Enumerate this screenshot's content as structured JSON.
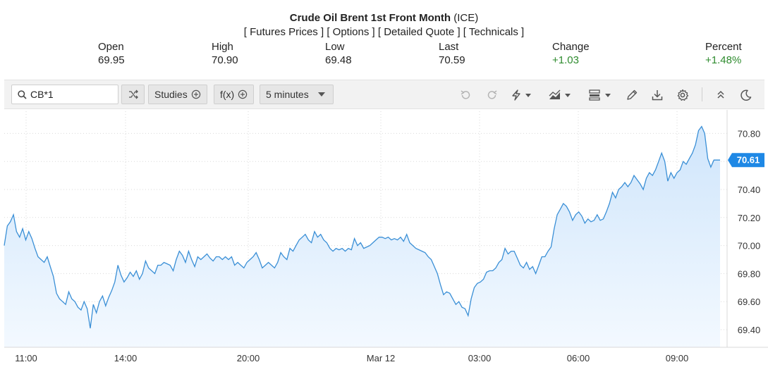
{
  "header": {
    "title_bold": "Crude Oil Brent 1st Front Month",
    "title_suffix": " (ICE)",
    "links": [
      "[ Futures Prices ]",
      "[ Options ]",
      "[ Detailed Quote ]",
      "[ Technicals ]"
    ]
  },
  "quote": {
    "open": {
      "label": "Open",
      "value": "69.95"
    },
    "high": {
      "label": "High",
      "value": "70.90"
    },
    "low": {
      "label": "Low",
      "value": "69.48"
    },
    "last": {
      "label": "Last",
      "value": "70.59"
    },
    "change": {
      "label": "Change",
      "value": "+1.03"
    },
    "percent": {
      "label": "Percent",
      "value": "+1.48%"
    }
  },
  "toolbar": {
    "symbol": "CB*1",
    "studies_label": "Studies",
    "fx_label": "f(x)",
    "interval_label": "5 minutes",
    "icons": [
      "undo-icon",
      "redo-icon",
      "lightning-icon",
      "chart-type-icon",
      "layout-icon",
      "pencil-icon",
      "download-icon",
      "gear-icon",
      "collapse-icon",
      "moon-icon"
    ]
  },
  "colors": {
    "line": "#3a8fd6",
    "fill_top": "#cfe5fb",
    "fill_bottom": "#f3f9ff",
    "accent": "#1e88e5",
    "up": "#2e8b2e"
  },
  "chart_data": {
    "type": "area",
    "x_tick_labels": [
      "11:00",
      "14:00",
      "20:00",
      "Mar 12",
      "03:00",
      "06:00",
      "09:00"
    ],
    "y_ticks": [
      69.4,
      69.6,
      69.8,
      70.0,
      70.2,
      70.4,
      70.6,
      70.8
    ],
    "y_tick_labels": [
      "69.40",
      "69.60",
      "69.80",
      "70.00",
      "70.20",
      "70.40",
      "70.60",
      "70.80"
    ],
    "ylim": [
      69.3,
      70.95
    ],
    "last_price_label": "70.61",
    "last_price": 70.61,
    "grid": true,
    "series": [
      {
        "values": [
          70.0,
          70.14,
          70.17,
          70.22,
          70.1,
          70.06,
          70.12,
          70.04,
          70.1,
          70.05,
          69.98,
          69.92,
          69.9,
          69.88,
          69.92,
          69.85,
          69.78,
          69.66,
          69.62,
          69.6,
          69.58,
          69.67,
          69.62,
          69.6,
          69.56,
          69.54,
          69.6,
          69.55,
          69.41,
          69.58,
          69.52,
          69.6,
          69.64,
          69.57,
          69.63,
          69.68,
          69.74,
          69.86,
          69.79,
          69.74,
          69.77,
          69.81,
          69.78,
          69.82,
          69.76,
          69.8,
          69.89,
          69.84,
          69.82,
          69.8,
          69.86,
          69.86,
          69.88,
          69.87,
          69.86,
          69.82,
          69.9,
          69.96,
          69.93,
          69.88,
          69.96,
          69.9,
          69.85,
          69.92,
          69.9,
          69.92,
          69.94,
          69.91,
          69.89,
          69.92,
          69.92,
          69.9,
          69.92,
          69.9,
          69.92,
          69.86,
          69.88,
          69.86,
          69.84,
          69.88,
          69.9,
          69.92,
          69.95,
          69.9,
          69.84,
          69.86,
          69.88,
          69.86,
          69.84,
          69.88,
          69.95,
          69.92,
          69.9,
          69.98,
          69.96,
          70.0,
          70.04,
          70.06,
          70.08,
          70.04,
          70.02,
          70.1,
          70.06,
          70.08,
          70.04,
          70.02,
          69.98,
          69.96,
          69.98,
          69.97,
          69.98,
          69.96,
          69.98,
          69.97,
          70.05,
          70.0,
          70.02,
          69.98,
          69.99,
          70.0,
          70.02,
          70.04,
          70.06,
          70.06,
          70.05,
          70.06,
          70.04,
          70.05,
          70.04,
          70.06,
          70.03,
          70.08,
          70.02,
          70.0,
          69.98,
          69.97,
          69.96,
          69.95,
          69.92,
          69.9,
          69.85,
          69.8,
          69.72,
          69.65,
          69.67,
          69.66,
          69.62,
          69.58,
          69.6,
          69.56,
          69.55,
          69.5,
          69.62,
          69.7,
          69.73,
          69.74,
          69.76,
          69.81,
          69.82,
          69.82,
          69.84,
          69.88,
          69.9,
          69.98,
          69.94,
          69.96,
          69.96,
          69.91,
          69.86,
          69.84,
          69.88,
          69.83,
          69.85,
          69.8,
          69.86,
          69.92,
          69.92,
          69.96,
          69.99,
          70.12,
          70.22,
          70.26,
          70.3,
          70.28,
          70.24,
          70.18,
          70.22,
          70.24,
          70.21,
          70.16,
          70.19,
          70.17,
          70.18,
          70.22,
          70.18,
          70.19,
          70.24,
          70.3,
          70.38,
          70.34,
          70.4,
          70.42,
          70.45,
          70.42,
          70.45,
          70.5,
          70.47,
          70.44,
          70.4,
          70.48,
          70.52,
          70.5,
          70.54,
          70.6,
          70.66,
          70.6,
          70.46,
          70.52,
          70.48,
          70.52,
          70.54,
          70.6,
          70.58,
          70.62,
          70.66,
          70.72,
          70.82,
          70.85,
          70.8,
          70.62,
          70.56,
          70.61,
          70.61,
          70.61
        ]
      }
    ]
  }
}
